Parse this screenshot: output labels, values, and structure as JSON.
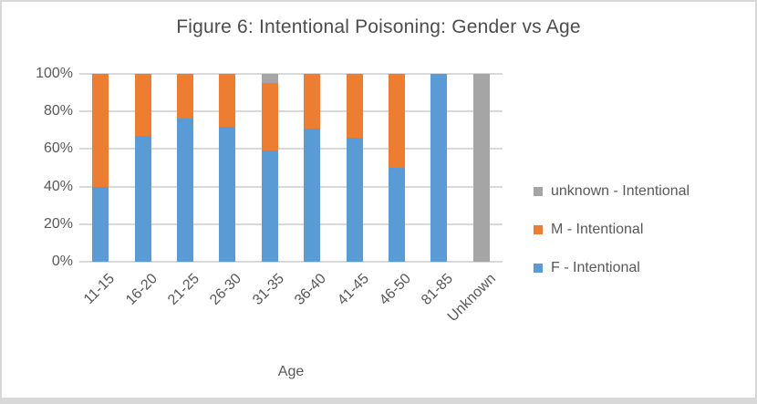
{
  "frame": {
    "background": "#FFFFFF",
    "border_color": "#D8D8D8"
  },
  "chart_data": {
    "type": "bar",
    "stacked": true,
    "units": "percent",
    "title": "Figure 6: Intentional Poisoning: Gender vs Age",
    "xlabel": "Age",
    "ylabel": "",
    "categories": [
      "11-15",
      "16-20",
      "21-25",
      "26-30",
      "31-35",
      "36-40",
      "41-45",
      "46-50",
      "81-85",
      "Unknown"
    ],
    "series": [
      {
        "name": "F - Intentional",
        "color": "#5B9BD5",
        "values": [
          40,
          67,
          76,
          72,
          59,
          71,
          66,
          50,
          100,
          0
        ]
      },
      {
        "name": "M - Intentional",
        "color": "#ED7D31",
        "values": [
          60,
          33,
          24,
          28,
          36,
          29,
          34,
          50,
          0,
          0
        ]
      },
      {
        "name": "unknown - Intentional",
        "color": "#A5A5A5",
        "values": [
          0,
          0,
          0,
          0,
          5,
          0,
          0,
          0,
          0,
          100
        ]
      }
    ],
    "y_ticks": [
      {
        "label": "0%",
        "value": 0
      },
      {
        "label": "20%",
        "value": 20
      },
      {
        "label": "40%",
        "value": 40
      },
      {
        "label": "60%",
        "value": 60
      },
      {
        "label": "80%",
        "value": 80
      },
      {
        "label": "100%",
        "value": 100
      }
    ],
    "ylim": [
      0,
      100
    ],
    "grid": true,
    "gridline_color": "#D9D9D9",
    "text_color": "#595959",
    "legend_position": "right",
    "legend": [
      {
        "label": "unknown - Intentional",
        "color": "#A5A5A5"
      },
      {
        "label": "M - Intentional",
        "color": "#ED7D31"
      },
      {
        "label": "F - Intentional",
        "color": "#5B9BD5"
      }
    ]
  }
}
